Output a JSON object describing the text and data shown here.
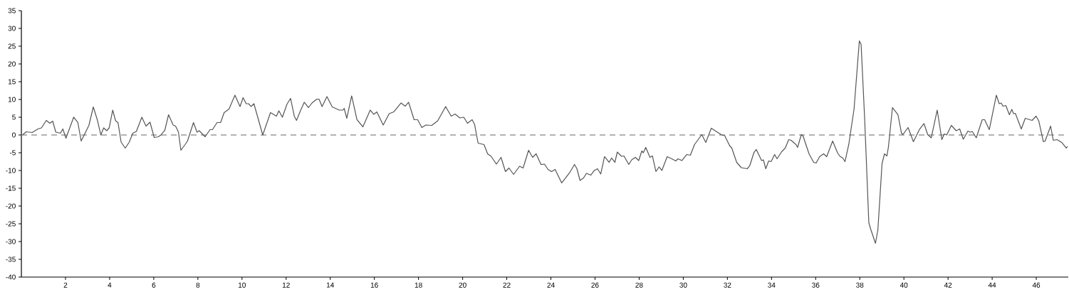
{
  "chart_data": {
    "type": "line",
    "x": [
      0.05,
      0.22,
      0.49,
      0.75,
      0.91,
      1.13,
      1.29,
      1.42,
      1.56,
      1.77,
      1.88,
      2.02,
      2.37,
      2.56,
      2.71,
      3.06,
      3.26,
      3.44,
      3.6,
      3.73,
      3.87,
      3.98,
      4.14,
      4.27,
      4.38,
      4.52,
      4.71,
      4.89,
      5.05,
      5.21,
      5.46,
      5.65,
      5.83,
      6.02,
      6.21,
      6.34,
      6.5,
      6.67,
      6.88,
      6.99,
      7.12,
      7.23,
      7.42,
      7.53,
      7.8,
      7.96,
      8.06,
      8.33,
      8.55,
      8.66,
      8.87,
      9.03,
      9.19,
      9.41,
      9.68,
      9.91,
      10.05,
      10.19,
      10.3,
      10.41,
      10.54,
      10.94,
      11.29,
      11.56,
      11.67,
      11.83,
      12.04,
      12.2,
      12.37,
      12.47,
      12.64,
      12.82,
      13.01,
      13.17,
      13.39,
      13.49,
      13.63,
      13.85,
      14.09,
      14.41,
      14.57,
      14.63,
      14.75,
      14.97,
      15.21,
      15.48,
      15.81,
      15.97,
      16.11,
      16.4,
      16.67,
      16.88,
      17.21,
      17.4,
      17.55,
      17.8,
      17.96,
      18.15,
      18.33,
      18.6,
      18.87,
      19.23,
      19.48,
      19.66,
      19.87,
      20.05,
      20.22,
      20.43,
      20.54,
      20.7,
      20.97,
      21.13,
      21.29,
      21.53,
      21.74,
      21.94,
      22.1,
      22.31,
      22.58,
      22.74,
      22.99,
      23.17,
      23.33,
      23.55,
      23.71,
      23.87,
      24.03,
      24.19,
      24.49,
      24.84,
      25.07,
      25.18,
      25.32,
      25.48,
      25.61,
      25.81,
      25.97,
      26.11,
      26.26,
      26.43,
      26.64,
      26.75,
      26.9,
      27.01,
      27.2,
      27.31,
      27.53,
      27.66,
      27.83,
      27.98,
      28.12,
      28.19,
      28.3,
      28.49,
      28.6,
      28.76,
      28.9,
      29.03,
      29.27,
      29.48,
      29.66,
      29.76,
      29.94,
      30.16,
      30.32,
      30.51,
      30.84,
      31.02,
      31.27,
      31.72,
      31.88,
      32.1,
      32.2,
      32.42,
      32.63,
      32.9,
      33.01,
      33.2,
      33.31,
      33.55,
      33.63,
      33.74,
      33.87,
      33.98,
      34.14,
      34.25,
      34.46,
      34.62,
      34.78,
      34.89,
      35.11,
      35.18,
      35.35,
      35.43,
      35.7,
      35.91,
      36.02,
      36.18,
      36.36,
      36.5,
      36.77,
      36.99,
      37.1,
      37.23,
      37.33,
      37.5,
      37.74,
      37.98,
      38.06,
      38.22,
      38.41,
      38.51,
      38.71,
      38.82,
      39.01,
      39.12,
      39.23,
      39.3,
      39.48,
      39.73,
      39.89,
      39.95,
      40.19,
      40.43,
      40.7,
      40.91,
      41.08,
      41.24,
      41.51,
      41.72,
      41.83,
      41.94,
      42.15,
      42.37,
      42.53,
      42.69,
      42.9,
      43.01,
      43.1,
      43.28,
      43.55,
      43.66,
      43.87,
      44.19,
      44.32,
      44.41,
      44.49,
      44.62,
      44.78,
      44.89,
      44.97,
      45.05,
      45.32,
      45.5,
      45.81,
      45.99,
      46.11,
      46.32,
      46.4,
      46.65,
      46.77,
      46.94,
      47.15,
      47.36,
      47.42
    ],
    "series": [
      {
        "color": "#555555",
        "values": [
          0,
          0.9,
          0.7,
          1.7,
          2.0,
          4.1,
          3.3,
          3.9,
          0.8,
          0.5,
          1.7,
          -0.9,
          5.0,
          3.5,
          -1.7,
          2.7,
          7.9,
          4.3,
          0,
          2.0,
          1.2,
          2.0,
          7.0,
          4.0,
          3.5,
          -2.0,
          -3.7,
          -2.0,
          0.5,
          1.0,
          5.0,
          2.5,
          3.6,
          -0.7,
          -0.5,
          0.1,
          1.3,
          5.7,
          2.8,
          2.5,
          0.8,
          -4.3,
          -2.7,
          -1.7,
          3.5,
          0.8,
          1.2,
          -0.5,
          1.5,
          1.5,
          3.5,
          3.5,
          6.3,
          7.3,
          11.2,
          8.0,
          10.5,
          8.8,
          8.8,
          8.0,
          8.8,
          0,
          6.3,
          5.3,
          6.8,
          5.0,
          8.7,
          10.3,
          5.3,
          4.1,
          6.7,
          9.2,
          7.7,
          9.0,
          10.1,
          10.1,
          8.0,
          10.8,
          7.9,
          7.0,
          7.0,
          7.5,
          4.7,
          11.0,
          4.3,
          2.3,
          7.0,
          5.8,
          6.5,
          2.8,
          6.0,
          6.5,
          9.0,
          8.1,
          9.2,
          4.3,
          4.3,
          2.1,
          2.8,
          2.7,
          4.0,
          8.0,
          5.3,
          5.9,
          4.8,
          5.0,
          3.3,
          4.3,
          3.0,
          -2.3,
          -2.7,
          -5.3,
          -6.0,
          -8.2,
          -6.3,
          -10.3,
          -9.3,
          -11.1,
          -8.8,
          -9.3,
          -4.3,
          -6.3,
          -5.3,
          -8.3,
          -8.2,
          -9.7,
          -10.3,
          -9.7,
          -13.5,
          -10.7,
          -8.3,
          -9.5,
          -12.8,
          -12.1,
          -10.8,
          -11.3,
          -10.0,
          -9.5,
          -11.0,
          -6.1,
          -7.7,
          -6.5,
          -7.7,
          -4.8,
          -6.0,
          -5.9,
          -8.3,
          -7.0,
          -6.3,
          -7.2,
          -4.5,
          -5.0,
          -3.5,
          -6.3,
          -5.9,
          -10.3,
          -9.0,
          -10.0,
          -6.1,
          -6.7,
          -7.3,
          -6.7,
          -7.2,
          -5.5,
          -5.7,
          -2.7,
          0.1,
          -2.1,
          1.9,
          0.1,
          -0.2,
          -3.0,
          -3.7,
          -7.7,
          -9.2,
          -9.5,
          -8.7,
          -5.0,
          -4.1,
          -7.2,
          -7.0,
          -9.5,
          -7.3,
          -7.5,
          -5.5,
          -6.7,
          -4.7,
          -3.7,
          -1.3,
          -1.5,
          -2.7,
          -3.5,
          0.1,
          -0.3,
          -5.3,
          -7.7,
          -7.9,
          -6.1,
          -5.3,
          -6.1,
          -1.7,
          -5.0,
          -6.0,
          -6.5,
          -7.5,
          -2.7,
          7.3,
          26.5,
          25.5,
          4.7,
          -24.7,
          -26.8,
          -30.5,
          -26.7,
          -8.0,
          -5.3,
          -5.9,
          -3.3,
          7.7,
          5.7,
          0.5,
          0.1,
          2.1,
          -1.9,
          1.5,
          3.2,
          0.1,
          -0.8,
          7.0,
          -1.3,
          0.3,
          0.0,
          2.7,
          1.2,
          1.7,
          -1.2,
          1.1,
          0.8,
          1.0,
          -0.8,
          4.3,
          4.3,
          1.5,
          11.2,
          8.8,
          9.0,
          8.1,
          8.3,
          5.7,
          7.2,
          6.0,
          6.1,
          1.7,
          4.7,
          4.1,
          5.3,
          4.0,
          -1.9,
          -1.7,
          2.5,
          -1.5,
          -1.3,
          -2.1,
          -3.7,
          -3.2
        ]
      }
    ],
    "xlim": [
      0,
      47.45
    ],
    "ylim": [
      -40,
      35
    ],
    "xticks": [
      2,
      4,
      6,
      8,
      10,
      12,
      14,
      16,
      18,
      20,
      22,
      24,
      26,
      28,
      30,
      32,
      34,
      36,
      38,
      40,
      42,
      44,
      46
    ],
    "yticks": [
      -40,
      -35,
      -30,
      -25,
      -20,
      -15,
      -10,
      -5,
      0,
      5,
      10,
      15,
      20,
      25,
      30,
      35
    ],
    "ref_lines": [
      {
        "axis": "y",
        "value": 0,
        "color": "#999999",
        "line_style": "dashed"
      }
    ]
  }
}
